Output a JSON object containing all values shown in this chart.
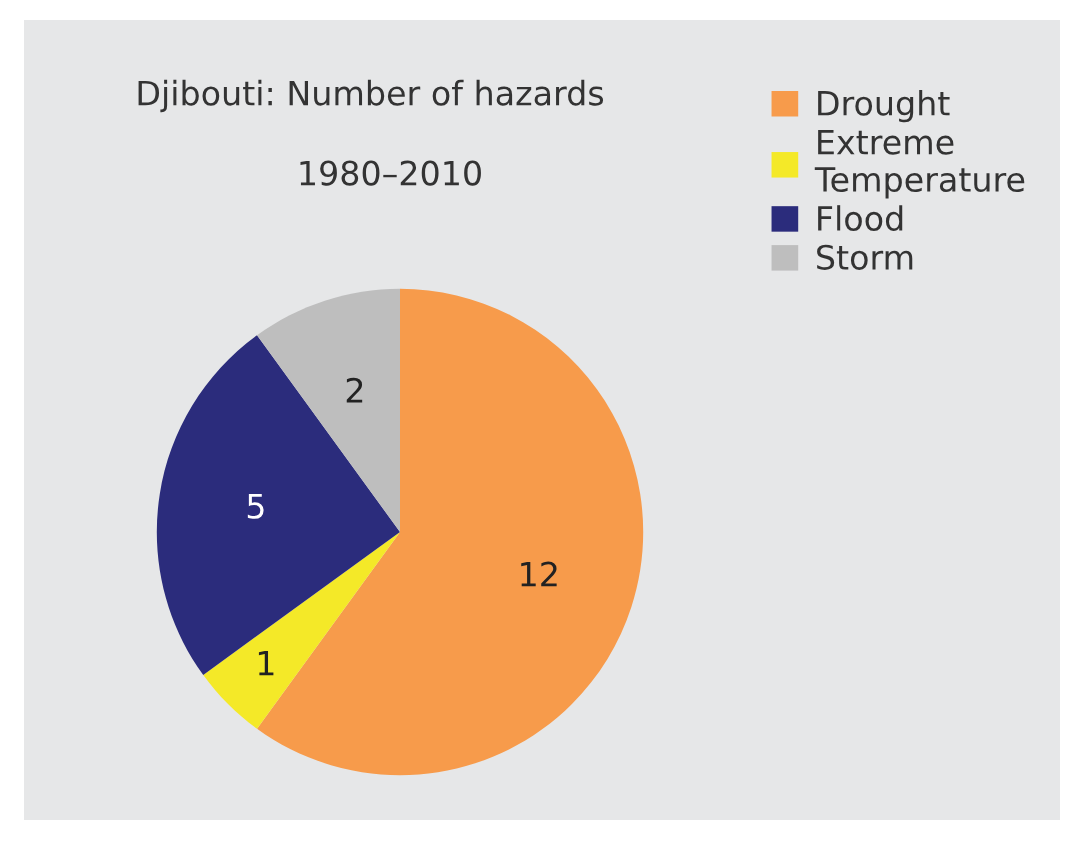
{
  "chart_data": {
    "type": "pie",
    "title": "Djibouti: Number of hazards",
    "subtitle": "1980–2010",
    "categories": [
      "Drought",
      "Extreme\nTemperature",
      "Flood",
      "Storm"
    ],
    "values": [
      12,
      1,
      5,
      2
    ],
    "colors": [
      "#f79b4b",
      "#f4e928",
      "#2b2c7c",
      "#bebebe"
    ],
    "data_labels": true,
    "legend": "top right"
  }
}
